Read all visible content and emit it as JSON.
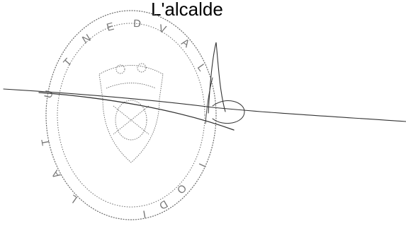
{
  "heading": {
    "text": "L'alcalde"
  },
  "seal": {
    "ring_text": "AJUNTAMENT DE VALÈNCIA",
    "description_icon": "official-seal",
    "ink_color": "#555555"
  },
  "signature": {
    "icon": "handwritten-signature",
    "ink_color": "#333333"
  }
}
